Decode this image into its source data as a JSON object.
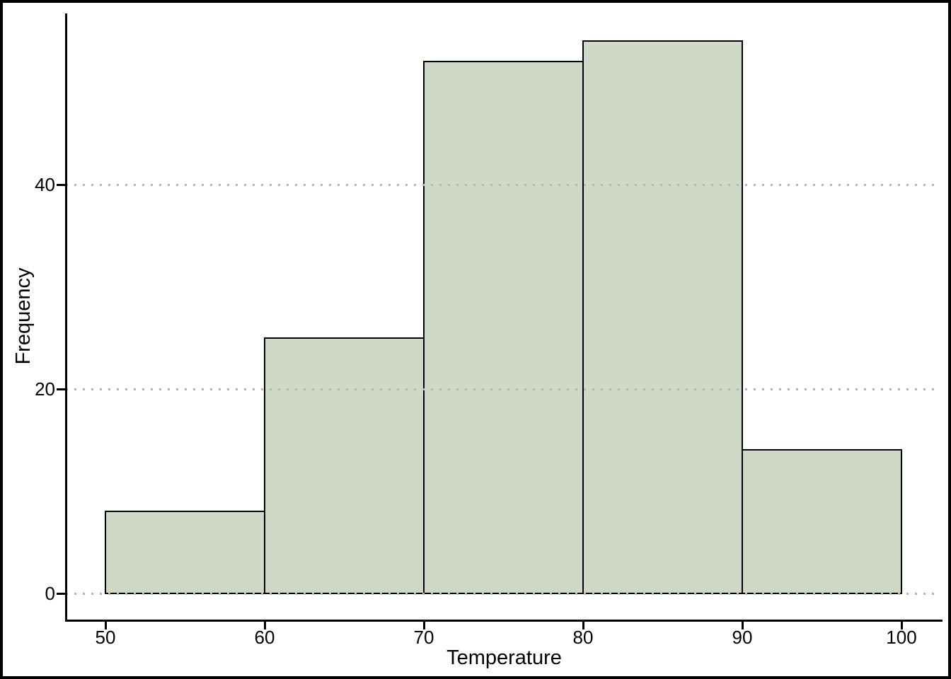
{
  "chart_data": {
    "type": "bar",
    "subtype": "histogram",
    "title": "",
    "xlabel": "Temperature",
    "ylabel": "Frequency",
    "categories": [
      "50-60",
      "60-70",
      "70-80",
      "80-90",
      "90-100"
    ],
    "values": [
      8,
      25,
      52,
      54,
      14
    ],
    "bin_edges": [
      50,
      60,
      70,
      80,
      90,
      100
    ],
    "frequencies": [
      8,
      25,
      52,
      54,
      14
    ],
    "x_ticks": [
      50,
      60,
      70,
      80,
      90,
      100
    ],
    "y_ticks": [
      0,
      20,
      40
    ],
    "xlim": [
      50,
      100
    ],
    "ylim": [
      0,
      57
    ],
    "grid": "horizontal dotted gridlines at y ticks, drawn on top of bars",
    "legend_position": "none",
    "colors": {
      "bar_fill": "#cfd9c5",
      "bar_border": "#000000",
      "gridline": "#b5b5b5",
      "axis": "#000000",
      "text": "#000000",
      "background": "#ffffff",
      "frame_border": "#000000"
    }
  }
}
